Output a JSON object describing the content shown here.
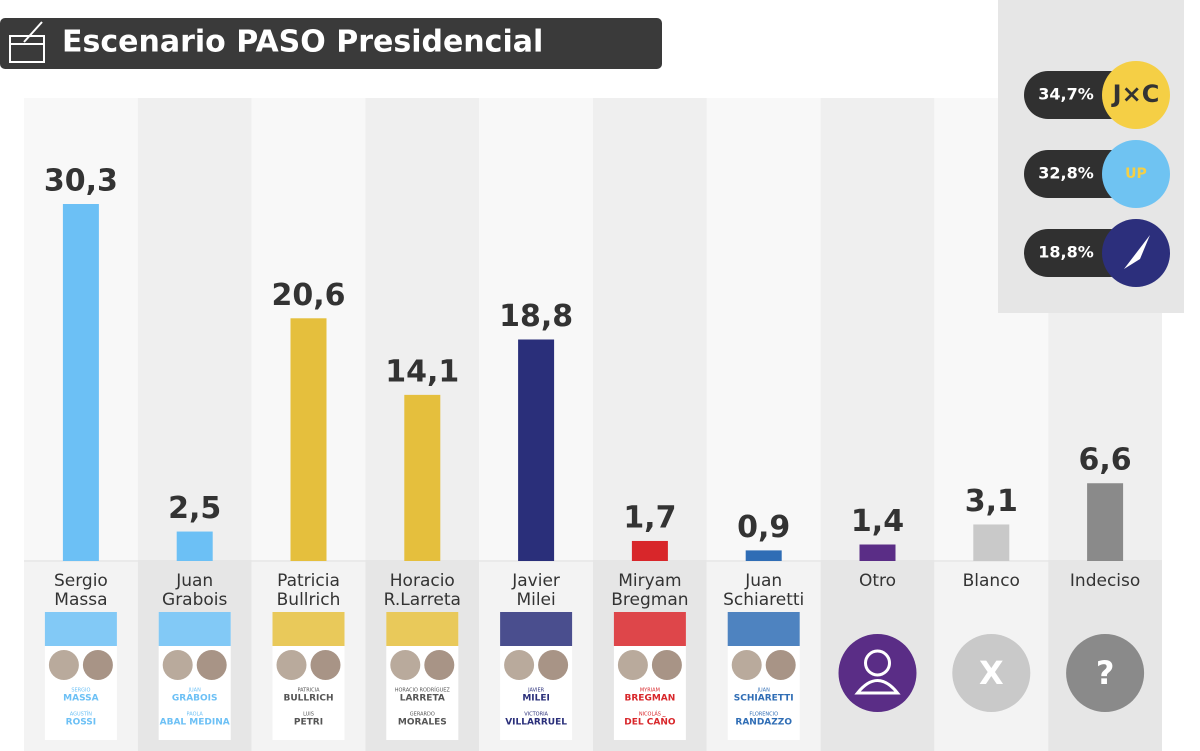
{
  "chart_data": {
    "type": "bar",
    "title": "Escenario PASO Presidencial",
    "categories": [
      "Sergio Massa",
      "Juan Grabois",
      "Patricia Bullrich",
      "Horacio R.Larreta",
      "Javier Milei",
      "Miryam Bregman",
      "Juan Schiaretti",
      "Otro",
      "Blanco",
      "Indeciso"
    ],
    "values": [
      30.3,
      2.5,
      20.6,
      14.1,
      18.8,
      1.7,
      0.9,
      1.4,
      3.1,
      6.6
    ],
    "value_labels": [
      "30,3",
      "2,5",
      "20,6",
      "14,1",
      "18,8",
      "1,7",
      "0,9",
      "1,4",
      "3,1",
      "6,6"
    ],
    "colors": [
      "#6cc0f5",
      "#6cc0f5",
      "#e5bf3d",
      "#e5bf3d",
      "#2a2f7a",
      "#d8262a",
      "#2f6db5",
      "#5a2d86",
      "#c9c9c9",
      "#8a8a8a"
    ],
    "cards": [
      [
        "SERGIO",
        "MASSA",
        "AGUSTÍN",
        "ROSSI"
      ],
      [
        "JUAN",
        "GRABOIS",
        "PAOLA",
        "ABAL MEDINA"
      ],
      [
        "PATRICIA",
        "BULLRICH",
        "LUIS",
        "PETRI"
      ],
      [
        "HORACIO RODRÍGUEZ",
        "LARRETA",
        "GERARDO",
        "MORALES"
      ],
      [
        "JAVIER",
        "MILEI",
        "VICTORIA",
        "VILLARRUEL"
      ],
      [
        "MYRIAM",
        "BREGMAN",
        "NICOLÁS",
        "DEL CAÑO"
      ],
      [
        "JUAN",
        "SCHIARETTI",
        "FLORENCIO",
        "RANDAZZO"
      ],
      null,
      "X",
      "?"
    ],
    "alliances": [
      {
        "value": 34.7,
        "label": "34,7%",
        "badge": "J×C",
        "color": "#f5cf45"
      },
      {
        "value": 32.8,
        "label": "32,8%",
        "badge": "UP",
        "color": "#6fc3f2"
      },
      {
        "value": 18.8,
        "label": "18,8%",
        "badge": "",
        "color": "#2c2f7c"
      }
    ]
  }
}
